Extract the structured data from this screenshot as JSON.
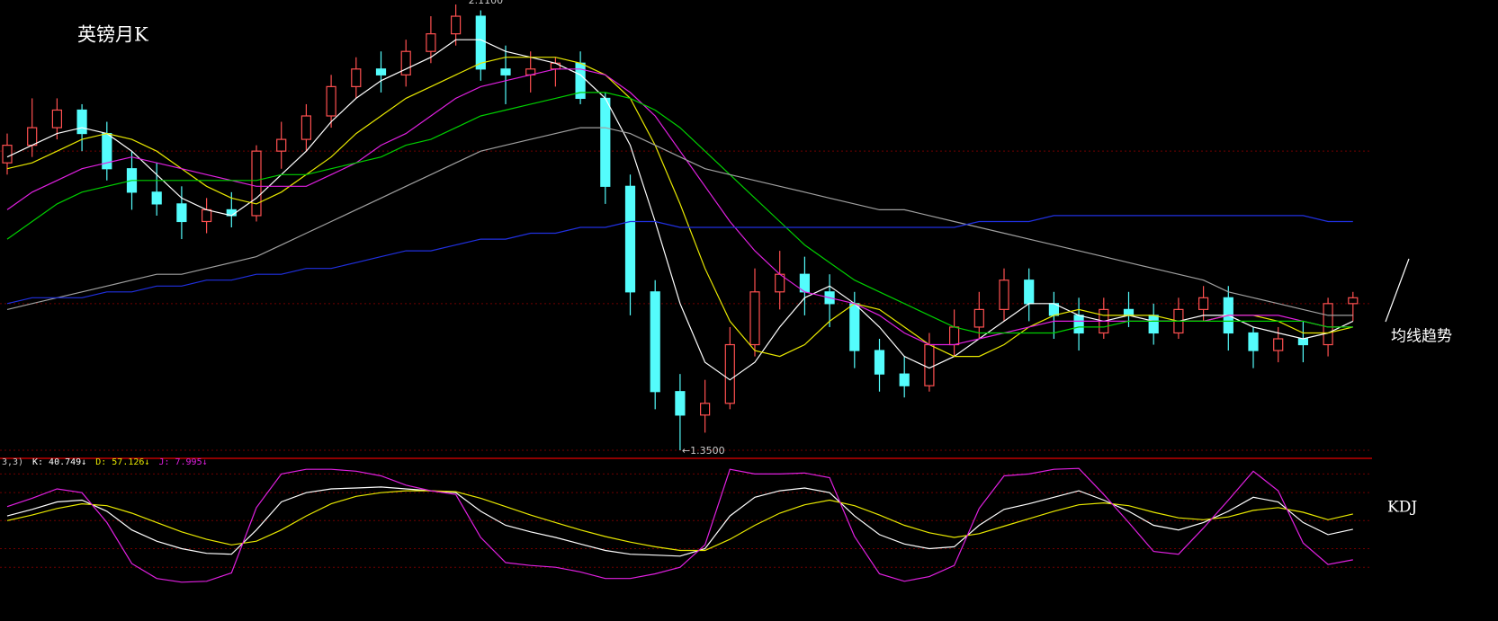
{
  "chart_data": [
    {
      "type": "candlestick",
      "title": "英镑月K",
      "side_note": "均线趋势",
      "up_color": "#ff5050",
      "down_color": "#54fcfc",
      "ylim": [
        1.35,
        2.11
      ],
      "ref_lines": [
        1.86,
        1.6
      ],
      "open": [
        1.84,
        1.87,
        1.9,
        1.93,
        1.89,
        1.83,
        1.79,
        1.77,
        1.74,
        1.76,
        1.75,
        1.86,
        1.88,
        1.92,
        1.97,
        2.0,
        1.99,
        2.03,
        2.06,
        2.09,
        2.0,
        1.99,
        2.0,
        2.01,
        1.95,
        1.8,
        1.62,
        1.45,
        1.41,
        1.43,
        1.53,
        1.62,
        1.65,
        1.62,
        1.6,
        1.52,
        1.48,
        1.46,
        1.53,
        1.56,
        1.59,
        1.64,
        1.6,
        1.58,
        1.55,
        1.59,
        1.58,
        1.55,
        1.59,
        1.61,
        1.55,
        1.52,
        1.54,
        1.53,
        1.6
      ],
      "high": [
        1.89,
        1.95,
        1.95,
        1.94,
        1.91,
        1.86,
        1.84,
        1.8,
        1.78,
        1.79,
        1.87,
        1.91,
        1.94,
        1.99,
        2.02,
        2.03,
        2.05,
        2.09,
        2.11,
        2.1,
        2.04,
        2.03,
        2.02,
        2.03,
        1.96,
        1.82,
        1.64,
        1.48,
        1.47,
        1.56,
        1.66,
        1.69,
        1.68,
        1.65,
        1.62,
        1.54,
        1.51,
        1.55,
        1.59,
        1.62,
        1.66,
        1.66,
        1.62,
        1.61,
        1.61,
        1.62,
        1.6,
        1.61,
        1.63,
        1.63,
        1.56,
        1.56,
        1.57,
        1.61,
        1.62
      ],
      "low": [
        1.82,
        1.85,
        1.88,
        1.86,
        1.81,
        1.76,
        1.75,
        1.71,
        1.72,
        1.73,
        1.74,
        1.83,
        1.86,
        1.9,
        1.95,
        1.96,
        1.97,
        2.01,
        2.04,
        1.98,
        1.94,
        1.96,
        1.97,
        1.94,
        1.77,
        1.58,
        1.42,
        1.35,
        1.38,
        1.42,
        1.51,
        1.59,
        1.58,
        1.56,
        1.49,
        1.45,
        1.44,
        1.45,
        1.51,
        1.54,
        1.57,
        1.57,
        1.54,
        1.52,
        1.54,
        1.56,
        1.53,
        1.54,
        1.57,
        1.52,
        1.49,
        1.5,
        1.5,
        1.51,
        1.57
      ],
      "close": [
        1.87,
        1.9,
        1.93,
        1.89,
        1.83,
        1.79,
        1.77,
        1.74,
        1.76,
        1.75,
        1.86,
        1.88,
        1.92,
        1.97,
        2.0,
        1.99,
        2.03,
        2.06,
        2.09,
        2.0,
        1.99,
        2.0,
        2.01,
        1.95,
        1.8,
        1.62,
        1.45,
        1.41,
        1.43,
        1.53,
        1.62,
        1.65,
        1.62,
        1.6,
        1.52,
        1.48,
        1.46,
        1.53,
        1.56,
        1.59,
        1.64,
        1.6,
        1.58,
        1.55,
        1.59,
        1.58,
        1.55,
        1.59,
        1.61,
        1.55,
        1.52,
        1.54,
        1.53,
        1.6,
        1.61
      ],
      "series": [
        {
          "color": "#ffffff",
          "values": [
            1.85,
            1.87,
            1.89,
            1.9,
            1.89,
            1.86,
            1.82,
            1.78,
            1.76,
            1.75,
            1.78,
            1.82,
            1.86,
            1.91,
            1.95,
            1.98,
            2.0,
            2.02,
            2.05,
            2.05,
            2.03,
            2.02,
            2.01,
            1.99,
            1.95,
            1.87,
            1.74,
            1.6,
            1.5,
            1.47,
            1.5,
            1.56,
            1.61,
            1.63,
            1.6,
            1.56,
            1.51,
            1.49,
            1.51,
            1.54,
            1.57,
            1.6,
            1.6,
            1.58,
            1.57,
            1.58,
            1.57,
            1.57,
            1.58,
            1.58,
            1.56,
            1.55,
            1.54,
            1.55,
            1.57
          ]
        },
        {
          "color": "#e8e800",
          "values": [
            1.83,
            1.84,
            1.86,
            1.88,
            1.89,
            1.88,
            1.86,
            1.83,
            1.8,
            1.78,
            1.77,
            1.79,
            1.82,
            1.85,
            1.89,
            1.92,
            1.95,
            1.97,
            1.99,
            2.01,
            2.02,
            2.02,
            2.02,
            2.01,
            1.99,
            1.95,
            1.87,
            1.77,
            1.66,
            1.57,
            1.52,
            1.51,
            1.53,
            1.57,
            1.6,
            1.59,
            1.56,
            1.53,
            1.51,
            1.51,
            1.53,
            1.56,
            1.58,
            1.59,
            1.58,
            1.58,
            1.58,
            1.57,
            1.57,
            1.58,
            1.58,
            1.57,
            1.55,
            1.55,
            1.56
          ]
        },
        {
          "color": "#e020e0",
          "values": [
            1.76,
            1.79,
            1.81,
            1.83,
            1.84,
            1.85,
            1.84,
            1.83,
            1.82,
            1.81,
            1.8,
            1.8,
            1.8,
            1.82,
            1.84,
            1.87,
            1.89,
            1.92,
            1.95,
            1.97,
            1.98,
            1.99,
            2.0,
            2.0,
            1.99,
            1.96,
            1.92,
            1.86,
            1.8,
            1.74,
            1.69,
            1.65,
            1.62,
            1.61,
            1.6,
            1.58,
            1.55,
            1.53,
            1.53,
            1.54,
            1.55,
            1.56,
            1.57,
            1.57,
            1.57,
            1.57,
            1.57,
            1.57,
            1.57,
            1.58,
            1.58,
            1.58,
            1.57,
            1.56,
            1.56
          ]
        },
        {
          "color": "#00d000",
          "values": [
            1.71,
            1.74,
            1.77,
            1.79,
            1.8,
            1.81,
            1.81,
            1.81,
            1.81,
            1.81,
            1.81,
            1.82,
            1.82,
            1.83,
            1.84,
            1.85,
            1.87,
            1.88,
            1.9,
            1.92,
            1.93,
            1.94,
            1.95,
            1.96,
            1.96,
            1.95,
            1.93,
            1.9,
            1.86,
            1.82,
            1.78,
            1.74,
            1.7,
            1.67,
            1.64,
            1.62,
            1.6,
            1.58,
            1.56,
            1.55,
            1.55,
            1.55,
            1.55,
            1.56,
            1.56,
            1.57,
            1.57,
            1.57,
            1.57,
            1.57,
            1.57,
            1.57,
            1.57,
            1.56,
            1.56
          ]
        },
        {
          "color": "#a0a0a0",
          "values": [
            1.59,
            1.6,
            1.61,
            1.62,
            1.63,
            1.64,
            1.65,
            1.65,
            1.66,
            1.67,
            1.68,
            1.7,
            1.72,
            1.74,
            1.76,
            1.78,
            1.8,
            1.82,
            1.84,
            1.86,
            1.87,
            1.88,
            1.89,
            1.9,
            1.9,
            1.89,
            1.87,
            1.85,
            1.83,
            1.82,
            1.81,
            1.8,
            1.79,
            1.78,
            1.77,
            1.76,
            1.76,
            1.75,
            1.74,
            1.73,
            1.72,
            1.71,
            1.7,
            1.69,
            1.68,
            1.67,
            1.66,
            1.65,
            1.64,
            1.62,
            1.61,
            1.6,
            1.59,
            1.58,
            1.58
          ]
        },
        {
          "color": "#2030e0",
          "values": [
            1.6,
            1.61,
            1.61,
            1.61,
            1.62,
            1.62,
            1.63,
            1.63,
            1.64,
            1.64,
            1.65,
            1.65,
            1.66,
            1.66,
            1.67,
            1.68,
            1.69,
            1.69,
            1.7,
            1.71,
            1.71,
            1.72,
            1.72,
            1.73,
            1.73,
            1.74,
            1.74,
            1.73,
            1.73,
            1.73,
            1.73,
            1.73,
            1.73,
            1.73,
            1.73,
            1.73,
            1.73,
            1.73,
            1.73,
            1.74,
            1.74,
            1.74,
            1.75,
            1.75,
            1.75,
            1.75,
            1.75,
            1.75,
            1.75,
            1.75,
            1.75,
            1.75,
            1.75,
            1.74,
            1.74
          ]
        }
      ],
      "annotations": [
        {
          "index": 18,
          "value": 2.11,
          "label": "2.1100"
        },
        {
          "index": 27,
          "value": 1.35,
          "label": "←1.3500"
        }
      ]
    },
    {
      "type": "line",
      "side_note": "KDJ",
      "params": "3,3)",
      "ylim": [
        -20,
        110
      ],
      "levels": [
        0,
        20,
        50,
        80,
        100
      ],
      "series": [
        {
          "name": "K: 40.749↓",
          "color": "#ffffff",
          "values": [
            55,
            62,
            70,
            72,
            60,
            40,
            28,
            20,
            15,
            14,
            40,
            70,
            80,
            84,
            85,
            86,
            84,
            82,
            80,
            60,
            45,
            38,
            32,
            25,
            18,
            14,
            13,
            12,
            20,
            55,
            75,
            82,
            85,
            80,
            55,
            35,
            25,
            20,
            22,
            45,
            62,
            68,
            75,
            82,
            72,
            60,
            45,
            40,
            48,
            60,
            75,
            70,
            48,
            35,
            40.749
          ]
        },
        {
          "name": "D: 57.126↓",
          "color": "#e8e800",
          "values": [
            50,
            56,
            63,
            68,
            66,
            58,
            48,
            38,
            30,
            24,
            28,
            40,
            55,
            68,
            76,
            80,
            82,
            82,
            81,
            74,
            65,
            56,
            48,
            40,
            33,
            27,
            22,
            18,
            18,
            30,
            45,
            58,
            67,
            72,
            66,
            56,
            45,
            37,
            32,
            36,
            44,
            52,
            60,
            67,
            69,
            66,
            59,
            53,
            51,
            54,
            61,
            64,
            59,
            51,
            57.126
          ]
        },
        {
          "name": "J: 7.995↓",
          "color": "#e020e0",
          "values": [
            65,
            74,
            84,
            80,
            48,
            4,
            -12,
            -16,
            -15,
            -6,
            64,
            100,
            105,
            105,
            103,
            98,
            88,
            82,
            78,
            32,
            5,
            2,
            0,
            -5,
            -12,
            -12,
            -7,
            0,
            24,
            105,
            100,
            100,
            101,
            96,
            33,
            -7,
            -15,
            -10,
            2,
            63,
            98,
            100,
            105,
            106,
            78,
            48,
            17,
            14,
            42,
            72,
            103,
            82,
            26,
            3,
            7.995
          ]
        }
      ]
    }
  ]
}
